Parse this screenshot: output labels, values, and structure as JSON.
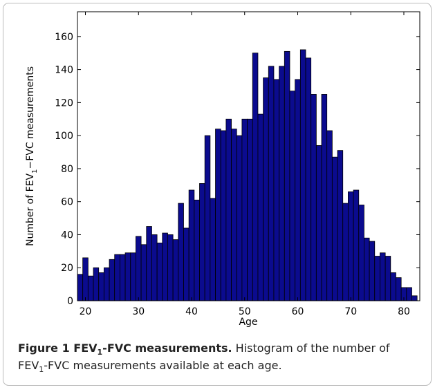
{
  "chart_data": {
    "type": "histogram",
    "x_label": "Age",
    "y_label": {
      "before": "Number of FEV",
      "sub": "1",
      "after": "−FVC measurements"
    },
    "bins": [
      18.5,
      19.5,
      20.5,
      21.5,
      22.5,
      23.5,
      24.5,
      25.5,
      26.5,
      27.5,
      28.5,
      29.5,
      30.5,
      31.5,
      32.5,
      33.5,
      34.5,
      35.5,
      36.5,
      37.5,
      38.5,
      39.5,
      40.5,
      41.5,
      42.5,
      43.5,
      44.5,
      45.5,
      46.5,
      47.5,
      48.5,
      49.5,
      50.5,
      51.5,
      52.5,
      53.5,
      54.5,
      55.5,
      56.5,
      57.5,
      58.5,
      59.5,
      60.5,
      61.5,
      62.5,
      63.5,
      64.5,
      65.5,
      66.5,
      67.5,
      68.5,
      69.5,
      70.5,
      71.5,
      72.5,
      73.5,
      74.5,
      75.5,
      76.5,
      77.5,
      78.5,
      79.5,
      80.5,
      81.5,
      82.5
    ],
    "values": [
      16,
      26,
      15,
      20,
      17,
      20,
      25,
      28,
      28,
      29,
      29,
      39,
      34,
      45,
      40,
      35,
      41,
      40,
      37,
      59,
      44,
      67,
      61,
      71,
      100,
      62,
      104,
      103,
      110,
      104,
      100,
      110,
      110,
      150,
      113,
      135,
      142,
      134,
      142,
      151,
      127,
      134,
      152,
      147,
      125,
      94,
      125,
      103,
      87,
      91,
      59,
      66,
      67,
      58,
      38,
      36,
      27,
      29,
      27,
      17,
      14,
      8,
      8,
      3
    ],
    "color": "#0b0b8e",
    "xlim": [
      18.5,
      83
    ],
    "ylim": [
      0,
      175
    ],
    "xticks": [
      20,
      30,
      40,
      50,
      60,
      70,
      80
    ],
    "yticks": [
      0,
      20,
      40,
      60,
      80,
      100,
      120,
      140,
      160
    ]
  },
  "caption": {
    "label_before": "Figure 1 FEV",
    "label_sub": "1",
    "label_after": "-FVC measurements.",
    "text_1": " Histogram of the number of",
    "text_2_before": "FEV",
    "text_2_sub": "1",
    "text_2_after": "-FVC measurements available at each age."
  }
}
